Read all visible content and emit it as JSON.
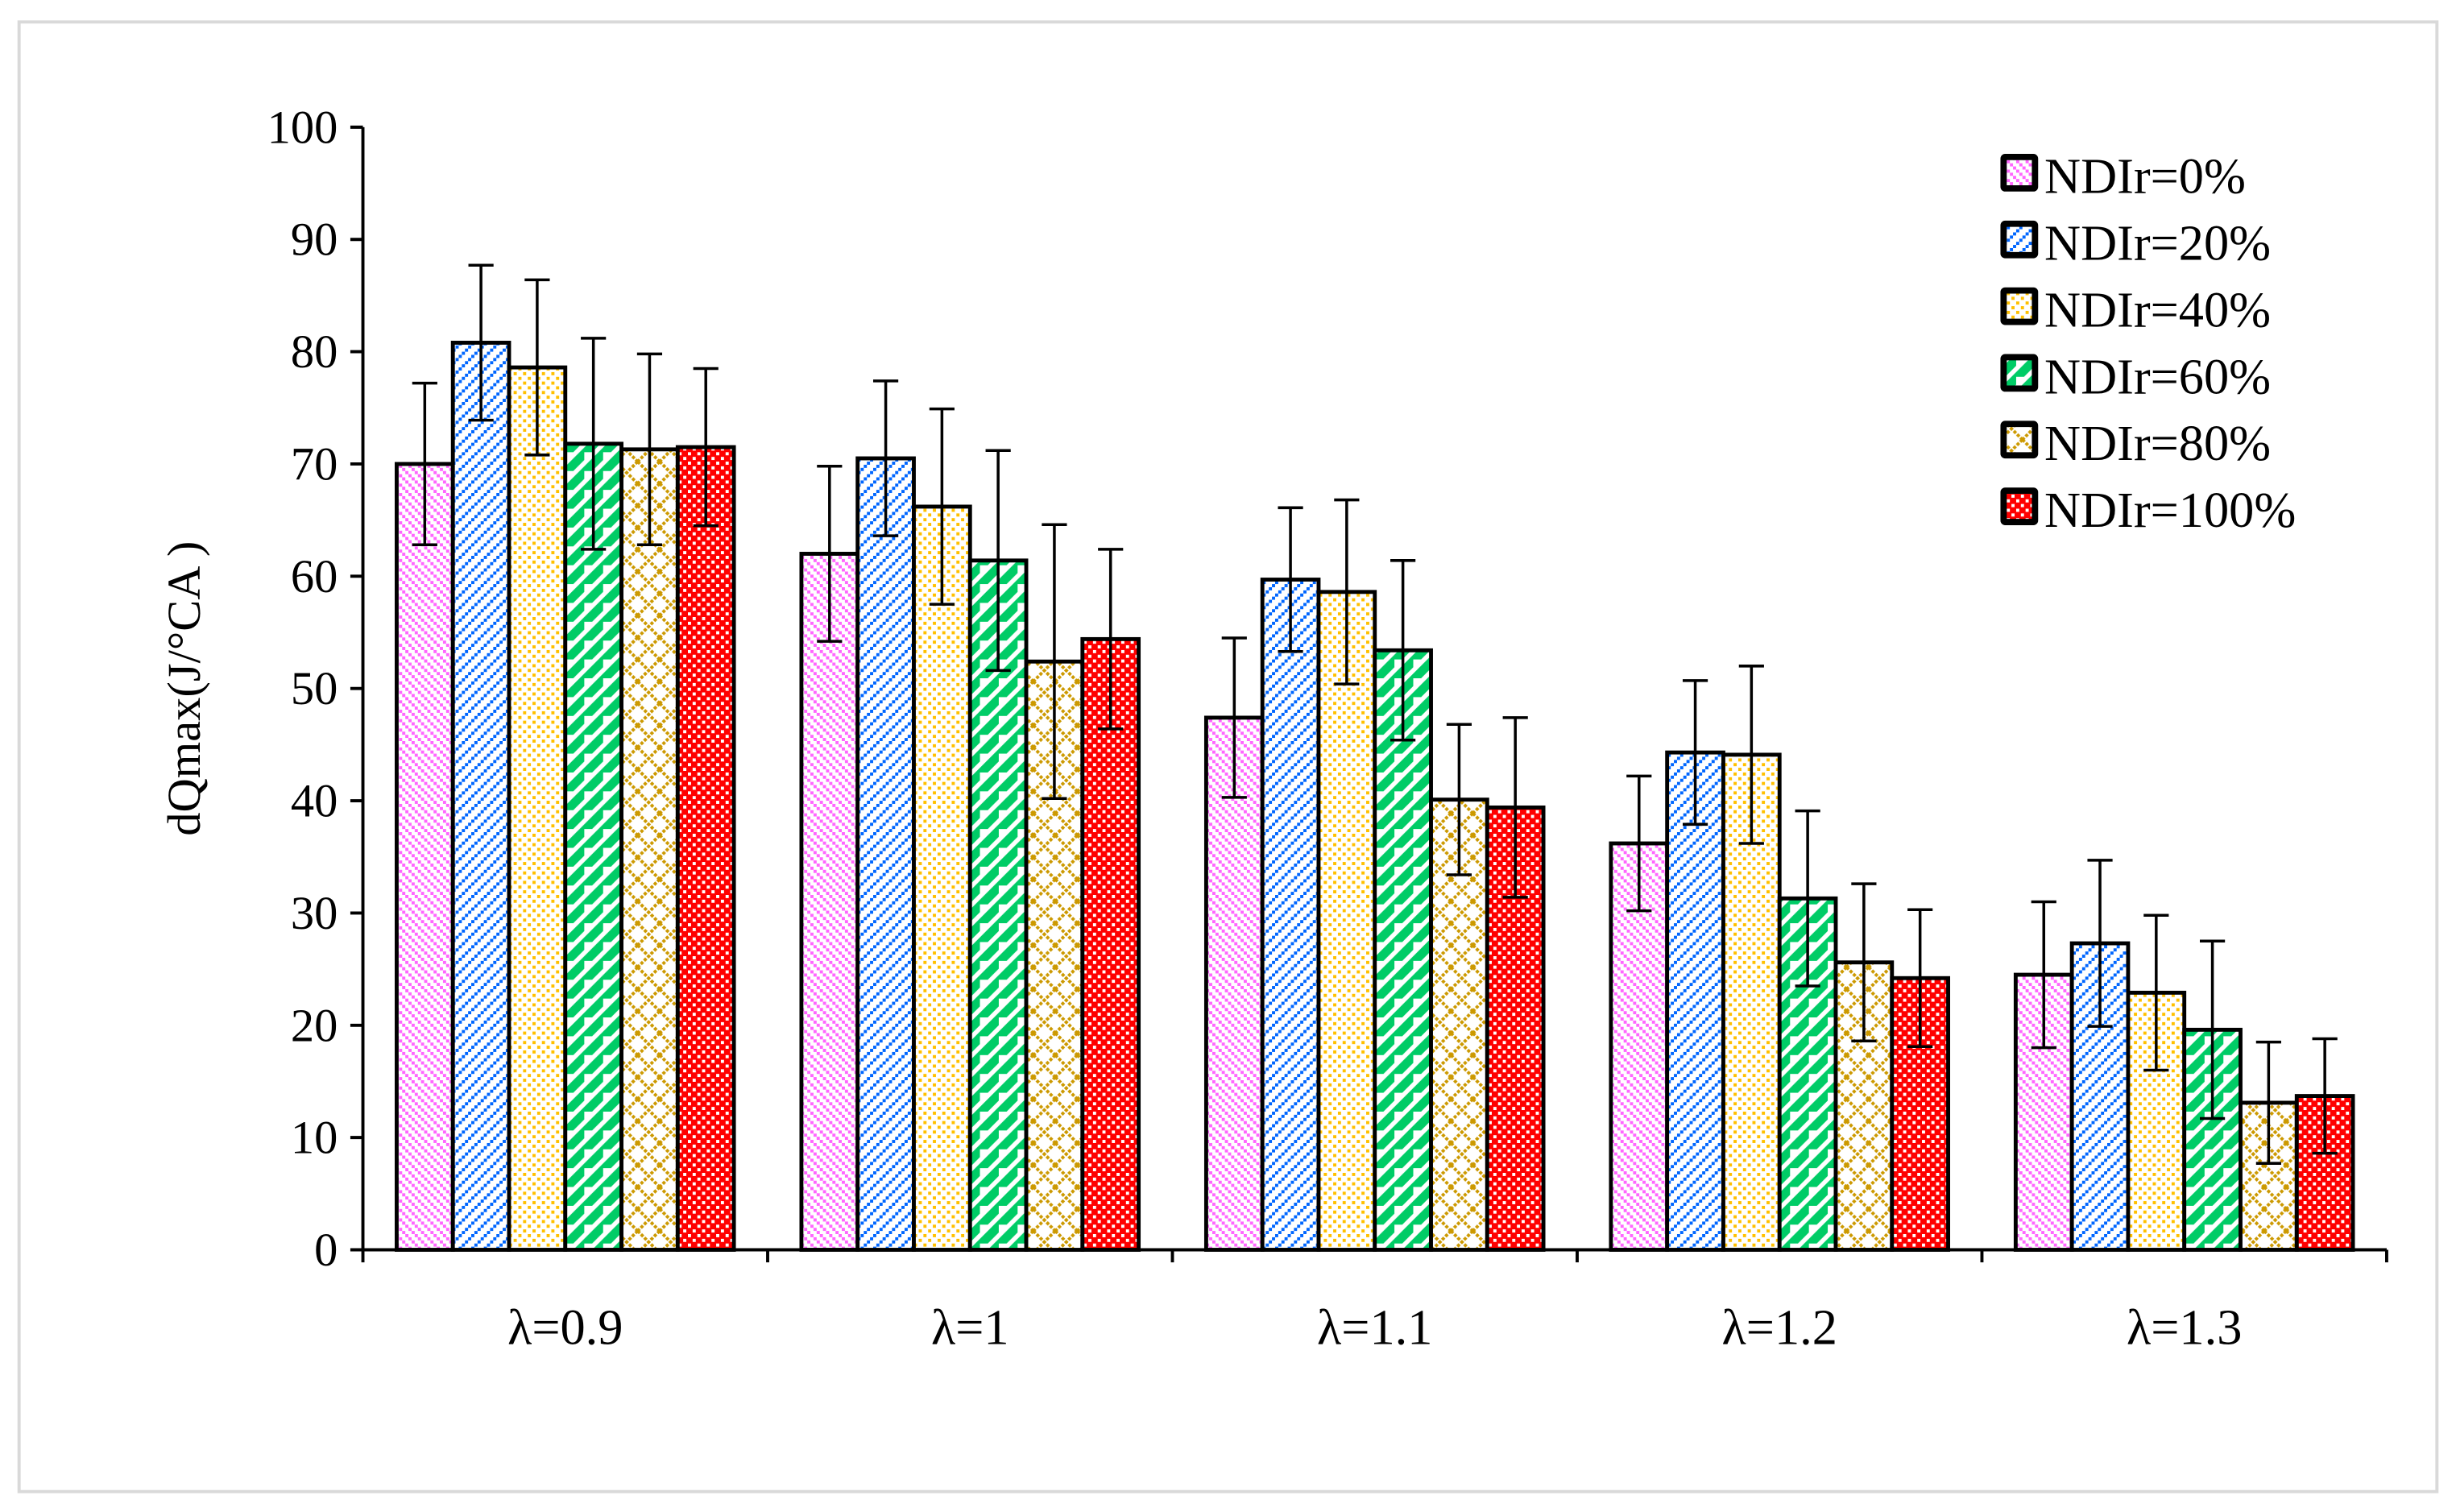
{
  "chart_data": {
    "type": "bar",
    "title": "",
    "xlabel": "",
    "ylabel": "dQmax(J/°CA )",
    "ylim": [
      0,
      100
    ],
    "yticks": [
      "0",
      "10",
      "20",
      "30",
      "40",
      "50",
      "60",
      "70",
      "80",
      "90",
      "100"
    ],
    "grid": false,
    "legend_position": "top-right",
    "error_bars": true,
    "categories": [
      "λ=0.9",
      "λ=1",
      "λ=1.1",
      "λ=1.2",
      "λ=1.3"
    ],
    "series": [
      {
        "name": "NDIr=0%",
        "color": "#ff66ff",
        "pattern": "narrow-downward-diagonal",
        "values": [
          70.0,
          62.0,
          47.4,
          36.2,
          24.5
        ],
        "errors": [
          7.2,
          7.8,
          7.1,
          6.0,
          6.5
        ]
      },
      {
        "name": "NDIr=20%",
        "color": "#0066ff",
        "pattern": "upward-diagonal-dashed",
        "values": [
          80.8,
          70.5,
          59.7,
          44.3,
          27.3
        ],
        "errors": [
          6.9,
          6.9,
          6.4,
          6.4,
          7.4
        ]
      },
      {
        "name": "NDIr=40%",
        "color": "#ffc000",
        "pattern": "checker-dots",
        "values": [
          78.6,
          66.2,
          58.6,
          44.1,
          22.9
        ],
        "errors": [
          7.8,
          8.7,
          8.2,
          7.9,
          6.9
        ]
      },
      {
        "name": "NDIr=60%",
        "color": "#00cc66",
        "pattern": "wide-upward-diagonal",
        "values": [
          71.8,
          61.4,
          53.4,
          31.3,
          19.6
        ],
        "errors": [
          9.4,
          9.8,
          8.0,
          7.8,
          7.9
        ]
      },
      {
        "name": "NDIr=80%",
        "color": "#cc9900",
        "pattern": "diagonal-cross",
        "values": [
          71.3,
          52.4,
          40.1,
          25.6,
          13.1
        ],
        "errors": [
          8.5,
          12.2,
          6.7,
          7.0,
          5.4
        ]
      },
      {
        "name": "NDIr=100%",
        "color": "#ff0000",
        "pattern": "checkerboard",
        "values": [
          71.5,
          54.4,
          39.4,
          24.2,
          13.7
        ],
        "errors": [
          7.0,
          8.0,
          8.0,
          6.1,
          5.1
        ]
      }
    ]
  }
}
